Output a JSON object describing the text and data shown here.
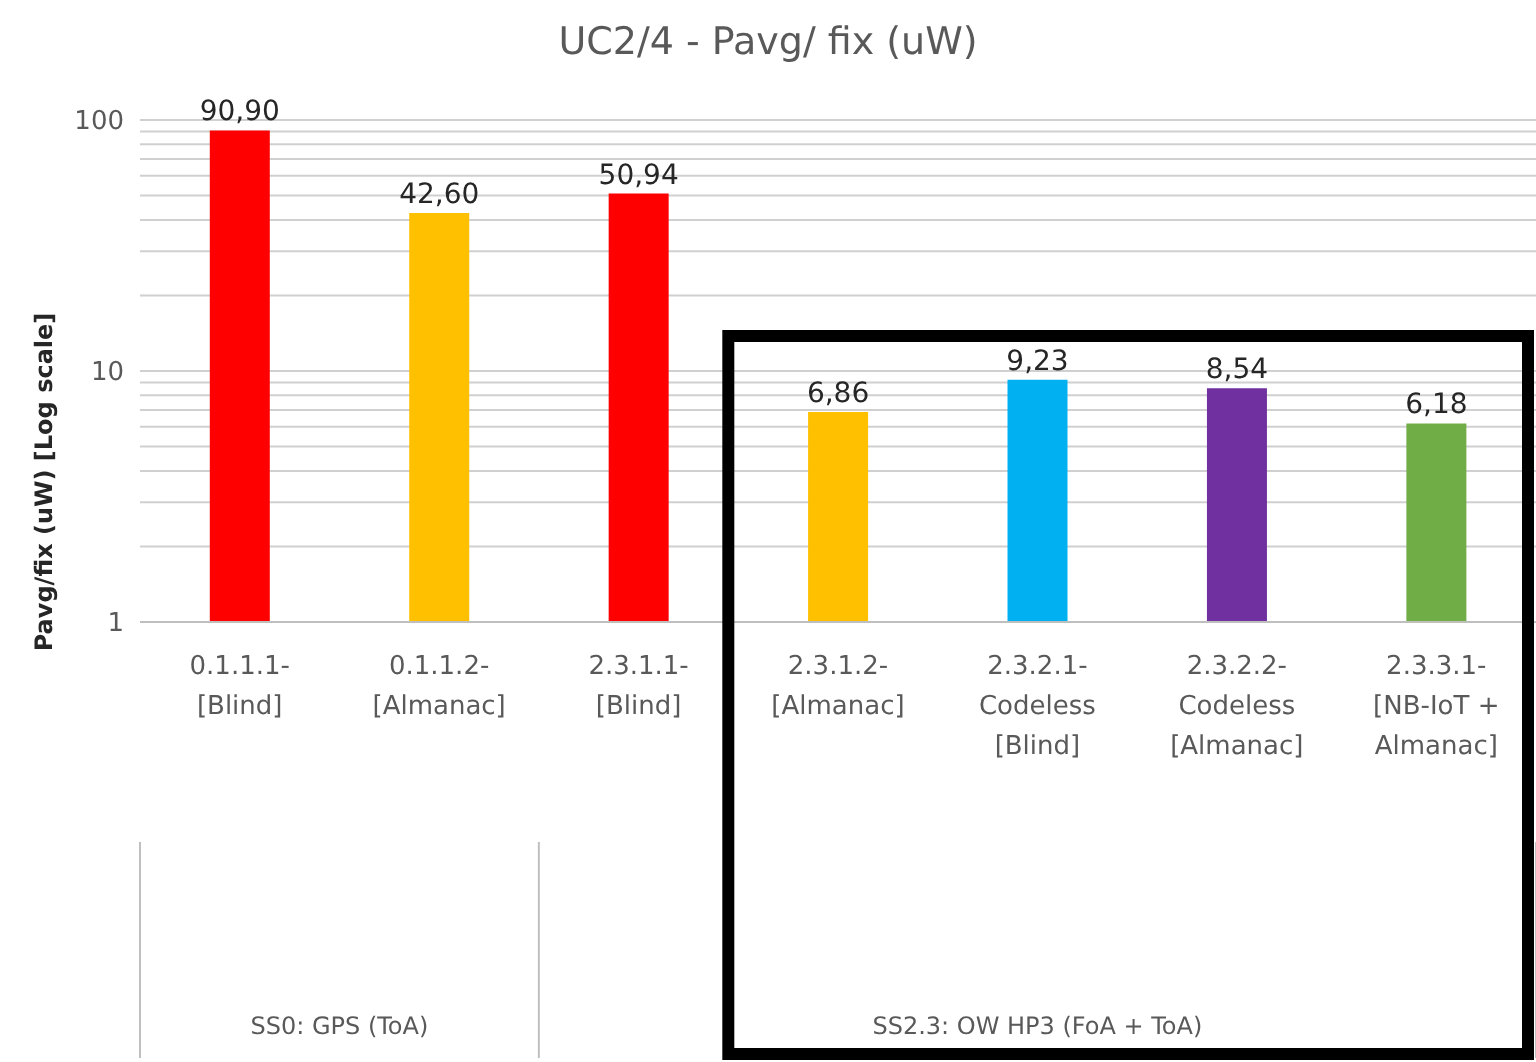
{
  "chart_data": {
    "type": "bar",
    "title": "UC2/4 - Pavg/ fix (uW)",
    "ylabel": "Pavg/fix (uW) [Log scale]",
    "categories": [
      "0.1.1.1- [Blind]",
      "0.1.1.2- [Almanac]",
      "2.3.1.1- [Blind]",
      "2.3.1.2- [Almanac]",
      "2.3.2.1- Codeless [Blind]",
      "2.3.2.2- Codeless [Almanac]",
      "2.3.3.1- [NB-IoT + Almanac]"
    ],
    "values": [
      90.9,
      42.6,
      50.94,
      6.86,
      9.23,
      8.54,
      6.18
    ],
    "colors": [
      "#ff0000",
      "#ffc000",
      "#ff0000",
      "#ffc000",
      "#00b0f0",
      "#7030a0",
      "#70ad47"
    ],
    "value_labels": [
      "90,90",
      "42,60",
      "50,94",
      "6,86",
      "9,23",
      "8,54",
      "6,18"
    ],
    "log": true,
    "ylim": [
      1,
      100
    ],
    "yticks": [
      1,
      {
        "value": 2,
        "label": null
      },
      {
        "value": 3,
        "label": null
      },
      {
        "value": 4,
        "label": null
      },
      {
        "value": 5,
        "label": null
      },
      {
        "value": 6,
        "label": null
      },
      {
        "value": 7,
        "label": null
      },
      {
        "value": 8,
        "label": null
      },
      {
        "value": 9,
        "label": null
      },
      10,
      {
        "value": 20,
        "label": null
      },
      {
        "value": 30,
        "label": null
      },
      {
        "value": 40,
        "label": null
      },
      {
        "value": 50,
        "label": null
      },
      {
        "value": 60,
        "label": null
      },
      {
        "value": 70,
        "label": null
      },
      {
        "value": 80,
        "label": null
      },
      {
        "value": 90,
        "label": null
      },
      100
    ],
    "grid": "y",
    "annotations": [
      "SS0: GPS (ToA)",
      "SS2.3: OW HP3 (FoA + ToA)"
    ]
  }
}
